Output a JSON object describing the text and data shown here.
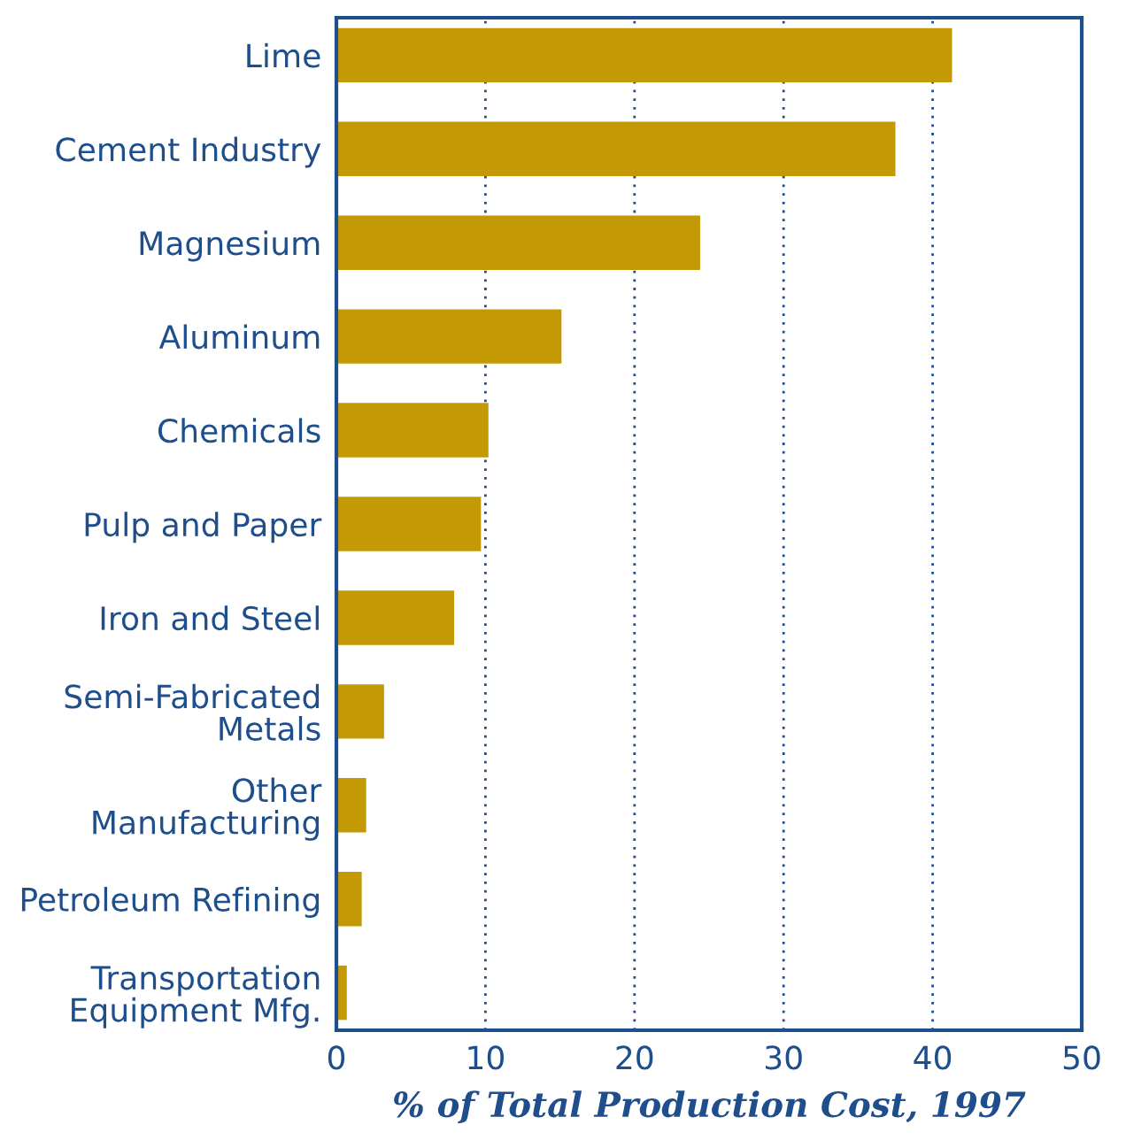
{
  "chart_data": {
    "type": "bar",
    "orientation": "horizontal",
    "xlabel": "% of Total Production Cost, 1997",
    "categories": [
      "Lime",
      "Cement Industry",
      "Magnesium",
      "Aluminum",
      "Chemicals",
      "Pulp and Paper",
      "Iron and Steel",
      "Semi-Fabricated\nMetals",
      "Other\nManufacturing",
      "Petroleum Refining",
      "Transportation\nEquipment Mfg."
    ],
    "values": [
      41.3,
      37.5,
      24.4,
      15.1,
      10.2,
      9.7,
      7.9,
      3.2,
      2.0,
      1.7,
      0.7
    ],
    "color": "#c39a06",
    "xlim": [
      0,
      50
    ],
    "xticks": [
      0,
      10,
      20,
      30,
      40,
      50
    ],
    "grid": "x"
  }
}
